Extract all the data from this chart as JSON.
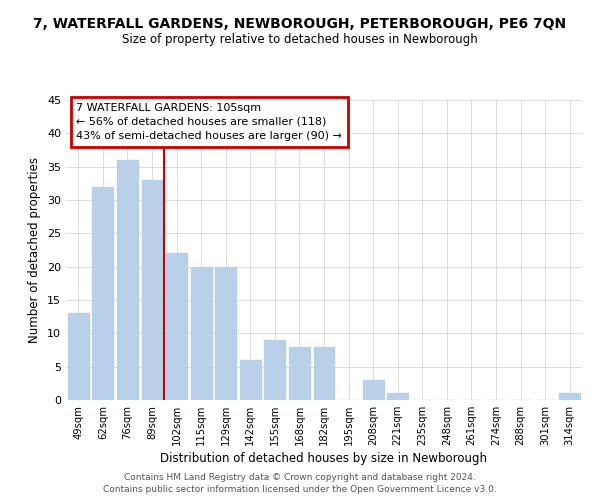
{
  "title": "7, WATERFALL GARDENS, NEWBOROUGH, PETERBOROUGH, PE6 7QN",
  "subtitle": "Size of property relative to detached houses in Newborough",
  "xlabel": "Distribution of detached houses by size in Newborough",
  "ylabel": "Number of detached properties",
  "bar_labels": [
    "49sqm",
    "62sqm",
    "76sqm",
    "89sqm",
    "102sqm",
    "115sqm",
    "129sqm",
    "142sqm",
    "155sqm",
    "168sqm",
    "182sqm",
    "195sqm",
    "208sqm",
    "221sqm",
    "235sqm",
    "248sqm",
    "261sqm",
    "274sqm",
    "288sqm",
    "301sqm",
    "314sqm"
  ],
  "bar_values": [
    13,
    32,
    36,
    33,
    22,
    20,
    20,
    6,
    9,
    8,
    8,
    0,
    3,
    1,
    0,
    0,
    0,
    0,
    0,
    0,
    1
  ],
  "bar_color": "#b8d0e8",
  "ref_line_index": 4,
  "ref_line_color": "#cc0000",
  "annotation_title": "7 WATERFALL GARDENS: 105sqm",
  "annotation_line1": "← 56% of detached houses are smaller (118)",
  "annotation_line2": "43% of semi-detached houses are larger (90) →",
  "annotation_box_facecolor": "#ffffff",
  "annotation_box_edgecolor": "#cc0000",
  "ylim": [
    0,
    45
  ],
  "yticks": [
    0,
    5,
    10,
    15,
    20,
    25,
    30,
    35,
    40,
    45
  ],
  "footnote1": "Contains HM Land Registry data © Crown copyright and database right 2024.",
  "footnote2": "Contains public sector information licensed under the Open Government Licence v3.0.",
  "background_color": "#ffffff",
  "grid_color": "#d0d0d0"
}
